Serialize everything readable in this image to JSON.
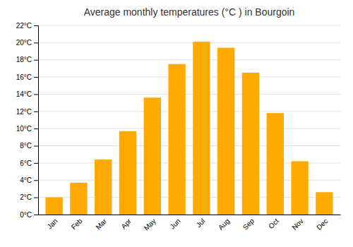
{
  "chart_data": {
    "type": "bar",
    "title": "Average monthly temperatures (°C ) in Bourgoin",
    "categories": [
      "Jan",
      "Feb",
      "Mar",
      "Apr",
      "May",
      "Jun",
      "Jul",
      "Aug",
      "Sep",
      "Oct",
      "Nov",
      "Dec"
    ],
    "values": [
      2.0,
      3.7,
      6.4,
      9.7,
      13.6,
      17.5,
      20.1,
      19.4,
      16.5,
      11.8,
      6.2,
      2.6
    ],
    "color": "#FFAA00",
    "ylim": [
      0,
      22
    ],
    "yticks": [
      {
        "value": 0,
        "label": "0°C"
      },
      {
        "value": 2,
        "label": "2°C"
      },
      {
        "value": 4,
        "label": "4°C"
      },
      {
        "value": 6,
        "label": "6°C"
      },
      {
        "value": 8,
        "label": "8°C"
      },
      {
        "value": 10,
        "label": "10°C"
      },
      {
        "value": 12,
        "label": "12°C"
      },
      {
        "value": 14,
        "label": "14°C"
      },
      {
        "value": 16,
        "label": "16°C"
      },
      {
        "value": 18,
        "label": "18°C"
      },
      {
        "value": 20,
        "label": "20°C"
      },
      {
        "value": 22,
        "label": "22°C"
      }
    ],
    "grid": true
  }
}
